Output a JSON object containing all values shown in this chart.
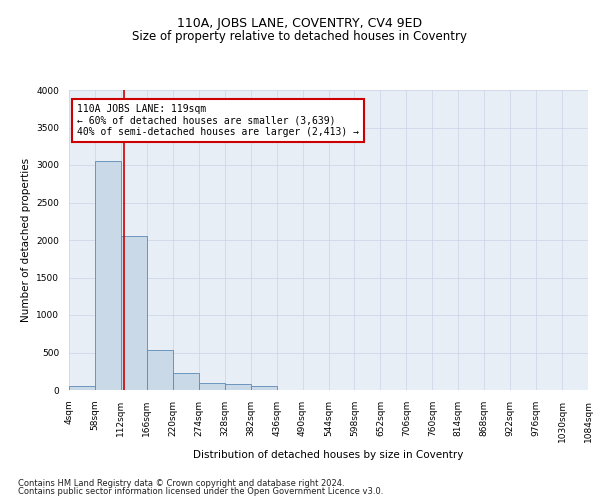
{
  "title": "110A, JOBS LANE, COVENTRY, CV4 9ED",
  "subtitle": "Size of property relative to detached houses in Coventry",
  "xlabel": "Distribution of detached houses by size in Coventry",
  "ylabel": "Number of detached properties",
  "bin_edges": [
    4,
    58,
    112,
    166,
    220,
    274,
    328,
    382,
    436,
    490,
    544,
    598,
    652,
    706,
    760,
    814,
    868,
    922,
    976,
    1030,
    1084
  ],
  "bin_labels": [
    "4sqm",
    "58sqm",
    "112sqm",
    "166sqm",
    "220sqm",
    "274sqm",
    "328sqm",
    "382sqm",
    "436sqm",
    "490sqm",
    "544sqm",
    "598sqm",
    "652sqm",
    "706sqm",
    "760sqm",
    "814sqm",
    "868sqm",
    "922sqm",
    "976sqm",
    "1030sqm",
    "1084sqm"
  ],
  "bar_values": [
    50,
    3050,
    2050,
    530,
    230,
    100,
    80,
    60,
    5,
    0,
    0,
    0,
    0,
    0,
    0,
    0,
    0,
    0,
    0,
    0
  ],
  "bar_facecolor": "#c9d9e8",
  "bar_edgecolor": "#5b8ab5",
  "vline_x": 119,
  "vline_color": "#cc0000",
  "ylim": [
    0,
    4000
  ],
  "yticks": [
    0,
    500,
    1000,
    1500,
    2000,
    2500,
    3000,
    3500,
    4000
  ],
  "annotation_line1": "110A JOBS LANE: 119sqm",
  "annotation_line2": "← 60% of detached houses are smaller (3,639)",
  "annotation_line3": "40% of semi-detached houses are larger (2,413) →",
  "grid_color": "#c8d4e4",
  "background_color": "#e8eef6",
  "footer_line1": "Contains HM Land Registry data © Crown copyright and database right 2024.",
  "footer_line2": "Contains public sector information licensed under the Open Government Licence v3.0.",
  "title_fontsize": 9,
  "subtitle_fontsize": 8.5,
  "axis_label_fontsize": 7.5,
  "tick_fontsize": 6.5,
  "annotation_fontsize": 7,
  "footer_fontsize": 6
}
